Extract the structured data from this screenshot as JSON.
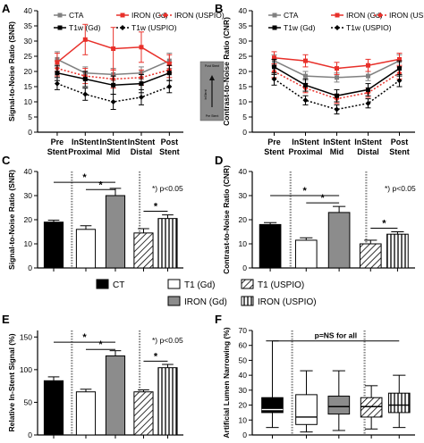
{
  "legend": {
    "items": [
      {
        "label": "CT",
        "pattern": "black"
      },
      {
        "label": "T1 (Gd)",
        "pattern": "white"
      },
      {
        "label": "T1 (USPIO)",
        "pattern": "diag"
      },
      {
        "label": "IRON (Gd)",
        "pattern": "gray"
      },
      {
        "label": "IRON (USPIO)",
        "pattern": "vert"
      }
    ]
  },
  "colors": {
    "red": "#e8302a",
    "gray": "#808080",
    "dark": "#000000",
    "grayFill": "#8c8c8c"
  },
  "chart_data": [
    {
      "panel": "A",
      "type": "line",
      "ylabel": "Signal-to-Noise Ratio (SNR)",
      "ylim": [
        0,
        40
      ],
      "yticks": [
        0,
        5,
        10,
        15,
        20,
        25,
        30,
        35,
        40
      ],
      "categories": [
        "Pre Stent",
        "InStent Proximal",
        "InStent Mid",
        "InStent Distal",
        "Post Stent"
      ],
      "legend": [
        {
          "label": "CTA",
          "style": "gray-solid"
        },
        {
          "label": "IRON (Gd)",
          "style": "red-solid"
        },
        {
          "label": "IRON (USPIO)",
          "style": "red-dotted"
        },
        {
          "label": "T1w (Gd)",
          "style": "black-solid"
        },
        {
          "label": "T1w (USPIO)",
          "style": "black-dotted"
        }
      ],
      "series": [
        {
          "name": "CTA",
          "values": [
            24,
            19.5,
            19,
            19.5,
            23.5
          ],
          "err": [
            2.5,
            2,
            2,
            2,
            2.5
          ]
        },
        {
          "name": "IRON (Gd)",
          "values": [
            23,
            30.5,
            27.5,
            28,
            22.5
          ],
          "err": [
            3,
            5,
            7,
            5,
            3
          ]
        },
        {
          "name": "IRON (USPIO)",
          "values": [
            21,
            18.5,
            17.5,
            18,
            20.5
          ],
          "err": [
            2.5,
            2.5,
            3,
            2.5,
            2.5
          ]
        },
        {
          "name": "T1w (Gd)",
          "values": [
            19.5,
            17.5,
            15.5,
            16,
            19.5
          ],
          "err": [
            2.5,
            2.5,
            3,
            3,
            2.5
          ]
        },
        {
          "name": "T1w (USPIO)",
          "values": [
            16,
            12.5,
            10,
            11.5,
            15
          ],
          "err": [
            2,
            2,
            2.5,
            2.5,
            2
          ]
        }
      ],
      "inset": {
        "top": "Post Stent",
        "mid": "InStent",
        "bottom": "Pre Stent"
      }
    },
    {
      "panel": "B",
      "type": "line",
      "ylabel": "Contrast-to-Noise Ratio (CNR)",
      "ylim": [
        0,
        40
      ],
      "yticks": [
        0,
        5,
        10,
        15,
        20,
        25,
        30,
        35,
        40
      ],
      "categories": [
        "Pre Stent",
        "InStent Proximal",
        "InStent Mid",
        "InStent Distal",
        "Post Stent"
      ],
      "legend": [
        {
          "label": "CTA",
          "style": "gray-solid"
        },
        {
          "label": "IRON (Gd)",
          "style": "red-solid"
        },
        {
          "label": "IRON (USPIO)",
          "style": "red-dotted"
        },
        {
          "label": "T1w (Gd)",
          "style": "black-solid"
        },
        {
          "label": "T1w (USPIO)",
          "style": "black-dotted"
        }
      ],
      "series": [
        {
          "name": "CTA",
          "values": [
            23.5,
            18.5,
            18,
            18.5,
            23.5
          ],
          "err": [
            2,
            1.5,
            1.5,
            1.5,
            2
          ]
        },
        {
          "name": "IRON (Gd)",
          "values": [
            24.5,
            23.5,
            21,
            22,
            24
          ],
          "err": [
            2,
            2,
            2,
            2,
            2
          ]
        },
        {
          "name": "IRON (USPIO)",
          "values": [
            20,
            14.5,
            11,
            13,
            19.5
          ],
          "err": [
            2,
            1.5,
            1.5,
            1.5,
            2
          ]
        },
        {
          "name": "T1w (Gd)",
          "values": [
            21.5,
            15.5,
            12,
            14,
            21
          ],
          "err": [
            2.5,
            2,
            2,
            2,
            2.5
          ]
        },
        {
          "name": "T1w (USPIO)",
          "values": [
            17.5,
            10.5,
            7.5,
            9.5,
            17
          ],
          "err": [
            2,
            1.5,
            1.5,
            1.5,
            2
          ]
        }
      ]
    },
    {
      "panel": "C",
      "type": "bar",
      "ylabel": "Signal-to-Noise Ratio (SNR)",
      "ylim": [
        0,
        40
      ],
      "yticks": [
        0,
        10,
        20,
        30,
        40
      ],
      "annotation": "*) p<0.05",
      "bars": [
        {
          "pattern": "black",
          "value": 19,
          "err": 0.8
        },
        {
          "pattern": "white",
          "value": 16,
          "err": 1.5
        },
        {
          "pattern": "gray",
          "value": 30,
          "err": 3
        },
        {
          "pattern": "diag",
          "value": 14.5,
          "err": 1.8
        },
        {
          "pattern": "vert",
          "value": 20.5,
          "err": 1.5
        }
      ],
      "brackets": [
        {
          "from": 0,
          "to": 2,
          "level": 35.5,
          "label": "*"
        },
        {
          "from": 1,
          "to": 2,
          "level": 32.5,
          "label": "*"
        },
        {
          "from": 3,
          "to": 4,
          "level": 23.5,
          "label": "*"
        }
      ]
    },
    {
      "panel": "D",
      "type": "bar",
      "ylabel": "Contrast-to-Noise Ratio (CNR)",
      "ylim": [
        0,
        40
      ],
      "yticks": [
        0,
        10,
        20,
        30,
        40
      ],
      "annotation": "*) p<0.05",
      "bars": [
        {
          "pattern": "black",
          "value": 18,
          "err": 0.8
        },
        {
          "pattern": "white",
          "value": 11.5,
          "err": 1
        },
        {
          "pattern": "gray",
          "value": 23,
          "err": 2.5
        },
        {
          "pattern": "diag",
          "value": 10,
          "err": 1.5
        },
        {
          "pattern": "vert",
          "value": 14,
          "err": 1
        }
      ],
      "brackets": [
        {
          "from": 0,
          "to": 2,
          "level": 30,
          "label": "*"
        },
        {
          "from": 1,
          "to": 2,
          "level": 27,
          "label": "*"
        },
        {
          "from": 3,
          "to": 4,
          "level": 16.5,
          "label": "*"
        }
      ]
    },
    {
      "panel": "E",
      "type": "bar",
      "ylabel": "Relative In-Stent Signal (%)",
      "ylim": [
        0,
        160
      ],
      "yticks": [
        0,
        50,
        100,
        150
      ],
      "annotation": "*) p<0.05",
      "bars": [
        {
          "pattern": "black",
          "value": 83,
          "err": 6
        },
        {
          "pattern": "white",
          "value": 66,
          "err": 4
        },
        {
          "pattern": "gray",
          "value": 121,
          "err": 8
        },
        {
          "pattern": "diag",
          "value": 66,
          "err": 3
        },
        {
          "pattern": "vert",
          "value": 103,
          "err": 5
        }
      ],
      "brackets": [
        {
          "from": 0,
          "to": 2,
          "level": 142,
          "label": "*"
        },
        {
          "from": 1,
          "to": 2,
          "level": 131,
          "label": "*"
        },
        {
          "from": 3,
          "to": 4,
          "level": 113,
          "label": "*"
        }
      ]
    },
    {
      "panel": "F",
      "type": "box",
      "ylabel": "Artificial Lumen Narrowing (%)",
      "ylim": [
        0,
        70
      ],
      "yticks": [
        0,
        10,
        20,
        30,
        40,
        50,
        60,
        70
      ],
      "annotation": "p=NS for all",
      "boxes": [
        {
          "pattern": "black",
          "min": 5,
          "q1": 15,
          "median": 17,
          "q3": 25,
          "max": 63
        },
        {
          "pattern": "white",
          "min": 2,
          "q1": 7,
          "median": 12,
          "q3": 27,
          "max": 43
        },
        {
          "pattern": "gray",
          "min": 3,
          "q1": 14,
          "median": 19,
          "q3": 26,
          "max": 43
        },
        {
          "pattern": "diag",
          "min": 4,
          "q1": 12,
          "median": 19,
          "q3": 25,
          "max": 33
        },
        {
          "pattern": "vert",
          "min": 5,
          "q1": 15,
          "median": 20,
          "q3": 28,
          "max": 40
        }
      ]
    }
  ]
}
